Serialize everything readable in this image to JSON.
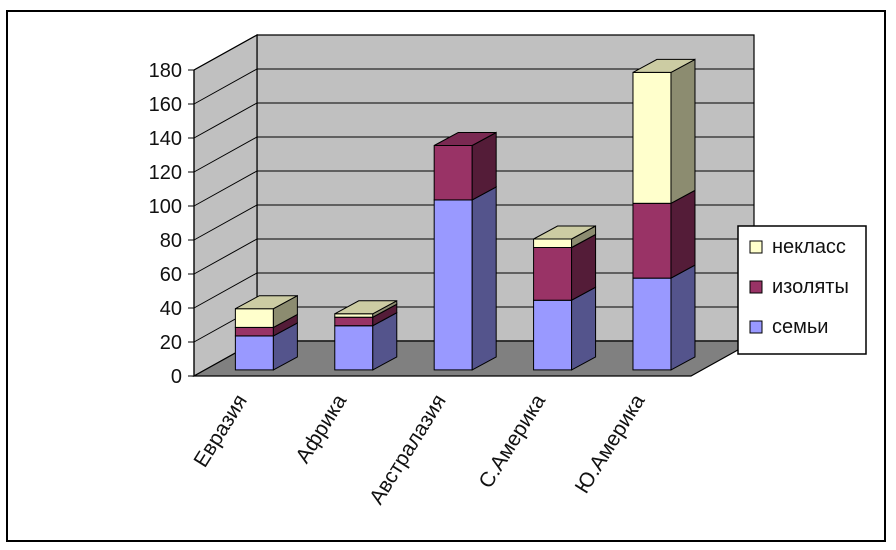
{
  "chart_data": {
    "type": "bar",
    "stacked": true,
    "three_d": true,
    "categories": [
      "Евразия",
      "Африка",
      "Австралазия",
      "С.Америка",
      "Ю.Америка"
    ],
    "series": [
      {
        "name": "семьи",
        "values": [
          20,
          26,
          100,
          41,
          54
        ],
        "color": "#9999ff"
      },
      {
        "name": "изоляты",
        "values": [
          5,
          5,
          32,
          31,
          44
        ],
        "color": "#993366"
      },
      {
        "name": "некласс",
        "values": [
          11,
          2,
          0,
          5,
          77
        ],
        "color": "#ffffcc"
      }
    ],
    "yticks": [
      "0",
      "20",
      "40",
      "60",
      "80",
      "100",
      "120",
      "140",
      "160",
      "180"
    ],
    "ylim": [
      0,
      180
    ],
    "grid": true,
    "legend_position": "right",
    "wall_color": "#c0c0c0",
    "floor_color": "#808080"
  }
}
